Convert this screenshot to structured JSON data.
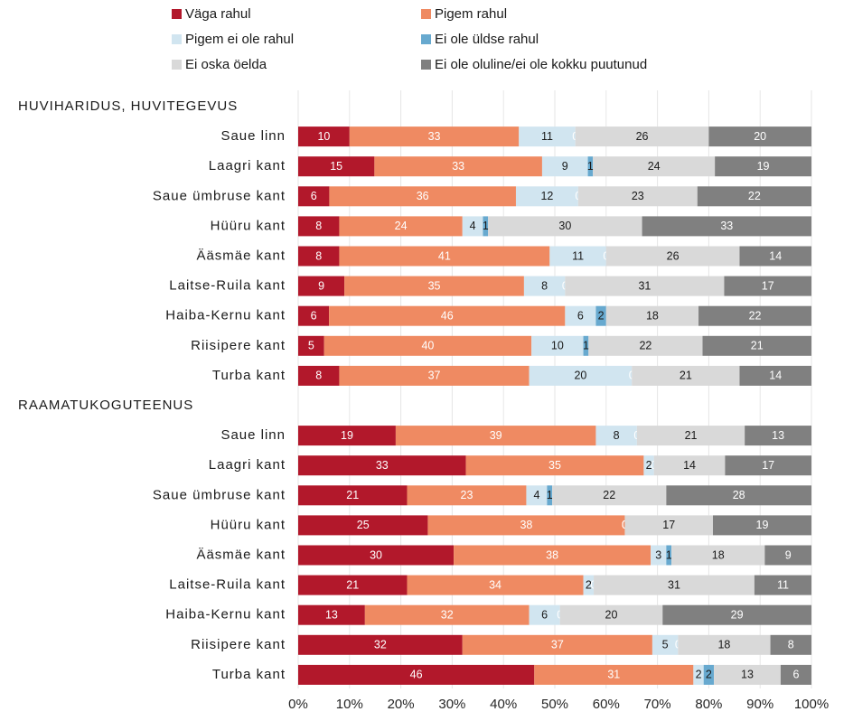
{
  "chart_data": {
    "type": "bar",
    "orientation": "horizontal",
    "stacked": "100%",
    "legend": "top",
    "grid": true,
    "xlim": [
      0,
      100
    ],
    "x_ticks": [
      "0%",
      "10%",
      "20%",
      "30%",
      "40%",
      "50%",
      "60%",
      "70%",
      "80%",
      "90%",
      "100%"
    ],
    "series": [
      {
        "name": "Väga rahul",
        "color": "#b2182b"
      },
      {
        "name": "Pigem rahul",
        "color": "#ef8a62"
      },
      {
        "name": "Pigem ei ole rahul",
        "color": "#d1e5f0"
      },
      {
        "name": "Ei ole üldse rahul",
        "color": "#67a9cf"
      },
      {
        "name": "Ei oska öelda",
        "color": "#d9d9d9"
      },
      {
        "name": "Ei ole oluline/ei ole kokku puutunud",
        "color": "#808080"
      }
    ],
    "groups": [
      {
        "title": "HUVIHARIDUS, HUVITEGEVUS",
        "rows": [
          {
            "label": "Saue linn",
            "values": [
              10,
              33,
              11,
              0,
              26,
              20
            ]
          },
          {
            "label": "Laagri kant",
            "values": [
              15,
              33,
              9,
              1,
              24,
              19
            ]
          },
          {
            "label": "Saue ümbruse kant",
            "values": [
              6,
              36,
              12,
              0,
              23,
              22
            ]
          },
          {
            "label": "Hüüru kant",
            "values": [
              8,
              24,
              4,
              1,
              30,
              33
            ]
          },
          {
            "label": "Ääsmäe kant",
            "values": [
              8,
              41,
              11,
              0,
              26,
              14
            ]
          },
          {
            "label": "Laitse-Ruila kant",
            "values": [
              9,
              35,
              8,
              0,
              31,
              17
            ]
          },
          {
            "label": "Haiba-Kernu kant",
            "values": [
              6,
              46,
              6,
              2,
              18,
              22
            ]
          },
          {
            "label": "Riisipere kant",
            "values": [
              5,
              40,
              10,
              1,
              22,
              21
            ]
          },
          {
            "label": "Turba kant",
            "values": [
              8,
              37,
              20,
              0,
              21,
              14
            ]
          }
        ]
      },
      {
        "title": "RAAMATUKOGUTEENUS",
        "rows": [
          {
            "label": "Saue linn",
            "values": [
              19,
              39,
              8,
              0,
              21,
              13
            ]
          },
          {
            "label": "Laagri kant",
            "values": [
              33,
              35,
              2,
              0,
              14,
              17
            ]
          },
          {
            "label": "Saue ümbruse kant",
            "values": [
              21,
              23,
              4,
              1,
              22,
              28
            ]
          },
          {
            "label": "Hüüru kant",
            "values": [
              25,
              38,
              0,
              0,
              17,
              19
            ]
          },
          {
            "label": "Ääsmäe kant",
            "values": [
              30,
              38,
              3,
              1,
              18,
              9
            ]
          },
          {
            "label": "Laitse-Ruila kant",
            "values": [
              21,
              34,
              2,
              0,
              31,
              11
            ]
          },
          {
            "label": "Haiba-Kernu kant",
            "values": [
              13,
              32,
              6,
              0,
              20,
              29
            ]
          },
          {
            "label": "Riisipere kant",
            "values": [
              32,
              37,
              5,
              0,
              18,
              8
            ]
          },
          {
            "label": "Turba kant",
            "values": [
              46,
              31,
              2,
              2,
              13,
              6
            ]
          }
        ]
      }
    ]
  }
}
